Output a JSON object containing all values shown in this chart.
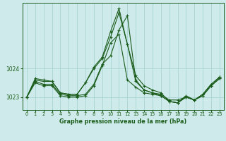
{
  "title": "Graphe pression niveau de la mer (hPa)",
  "bg_color": "#ceeaea",
  "grid_color": "#a8d4d4",
  "line_color": "#1a5c1a",
  "x_ticks": [
    0,
    1,
    2,
    3,
    4,
    5,
    6,
    7,
    8,
    9,
    10,
    11,
    12,
    13,
    14,
    15,
    16,
    17,
    18,
    19,
    20,
    21,
    22,
    23
  ],
  "y_ticks": [
    1023,
    1024
  ],
  "ylim": [
    1022.55,
    1026.3
  ],
  "xlim": [
    -0.5,
    23.5
  ],
  "series": [
    [
      1023.0,
      1023.55,
      1023.45,
      1023.45,
      1023.1,
      1023.05,
      1023.05,
      1023.1,
      1023.45,
      1024.15,
      1024.45,
      1025.35,
      1025.85,
      1023.6,
      1023.25,
      1023.15,
      1023.1,
      1022.9,
      1022.9,
      1023.0,
      1022.9,
      1023.05,
      1023.4,
      1023.65
    ],
    [
      1023.0,
      1023.5,
      1023.4,
      1023.4,
      1023.05,
      1023.0,
      1023.0,
      1023.05,
      1023.4,
      1024.1,
      1024.9,
      1025.2,
      1023.6,
      1023.35,
      1023.15,
      1023.1,
      1023.05,
      1022.85,
      1022.8,
      1023.0,
      1022.9,
      1023.05,
      1023.4,
      1023.65
    ],
    [
      1023.0,
      1023.6,
      1023.55,
      1023.55,
      1023.15,
      1023.1,
      1023.1,
      1023.5,
      1024.0,
      1024.35,
      1025.1,
      1025.95,
      1024.85,
      1023.75,
      1023.4,
      1023.25,
      1023.15,
      1022.85,
      1022.8,
      1023.05,
      1022.9,
      1023.1,
      1023.45,
      1023.7
    ],
    [
      1023.0,
      1023.65,
      1023.6,
      1023.55,
      1023.15,
      1023.1,
      1023.1,
      1023.5,
      1024.05,
      1024.4,
      1025.3,
      1026.1,
      1024.85,
      1023.55,
      1023.25,
      1023.15,
      1023.05,
      1022.85,
      1022.8,
      1023.0,
      1022.9,
      1023.1,
      1023.45,
      1023.7
    ]
  ]
}
